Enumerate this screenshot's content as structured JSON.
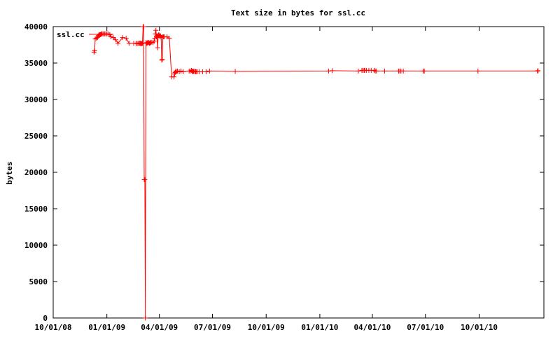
{
  "chart_data": {
    "type": "line",
    "title": "Text size in bytes for ssl.cc",
    "xlabel": "",
    "ylabel": "bytes",
    "x_tick_labels": [
      "10/01/08",
      "01/01/09",
      "04/01/09",
      "07/01/09",
      "10/01/09",
      "01/01/10",
      "04/01/10",
      "07/01/10",
      "10/01/10"
    ],
    "x_tick_dates": [
      "2008-10-01",
      "2009-01-01",
      "2009-04-01",
      "2009-07-01",
      "2009-10-01",
      "2010-01-01",
      "2010-04-01",
      "2010-07-01",
      "2010-10-01"
    ],
    "xlim": [
      "2008-10-01",
      "2011-01-20"
    ],
    "ylim": [
      0,
      40000
    ],
    "y_ticks": [
      0,
      5000,
      10000,
      15000,
      20000,
      25000,
      30000,
      35000,
      40000
    ],
    "y_tick_labels": [
      "0",
      "5000",
      "10000",
      "15000",
      "20000",
      "25000",
      "30000",
      "35000",
      "40000"
    ],
    "grid": false,
    "legend": "top-left",
    "color": "#ff0000",
    "series": [
      {
        "name": "ssl.cc",
        "x": [
          "2008-12-10",
          "2008-12-11",
          "2008-12-12",
          "2008-12-14",
          "2008-12-16",
          "2008-12-17",
          "2008-12-18",
          "2008-12-19",
          "2008-12-20",
          "2008-12-21",
          "2008-12-22",
          "2008-12-23",
          "2008-12-24",
          "2008-12-26",
          "2008-12-28",
          "2008-12-30",
          "2009-01-01",
          "2009-01-03",
          "2009-01-06",
          "2009-01-08",
          "2009-01-12",
          "2009-01-16",
          "2009-01-20",
          "2009-01-28",
          "2009-02-03",
          "2009-02-08",
          "2009-02-16",
          "2009-02-20",
          "2009-02-22",
          "2009-02-24",
          "2009-02-26",
          "2009-02-27",
          "2009-02-28",
          "2009-03-01",
          "2009-03-02",
          "2009-03-03",
          "2009-03-04",
          "2009-03-05",
          "2009-03-06",
          "2009-03-07",
          "2009-03-08",
          "2009-03-09",
          "2009-03-10",
          "2009-03-11",
          "2009-03-12",
          "2009-03-13",
          "2009-03-14",
          "2009-03-15",
          "2009-03-16",
          "2009-03-17",
          "2009-03-18",
          "2009-03-21",
          "2009-03-23",
          "2009-03-24",
          "2009-03-25",
          "2009-03-26",
          "2009-03-27",
          "2009-03-28",
          "2009-03-29",
          "2009-03-30",
          "2009-03-31",
          "2009-04-01",
          "2009-04-02",
          "2009-04-03",
          "2009-04-04",
          "2009-04-05",
          "2009-04-06",
          "2009-04-07",
          "2009-04-08",
          "2009-04-10",
          "2009-04-14",
          "2009-04-18",
          "2009-04-22",
          "2009-04-26",
          "2009-04-27",
          "2009-04-28",
          "2009-04-29",
          "2009-04-30",
          "2009-05-02",
          "2009-05-05",
          "2009-05-08",
          "2009-05-12",
          "2009-05-22",
          "2009-05-24",
          "2009-05-26",
          "2009-05-27",
          "2009-05-28",
          "2009-05-29",
          "2009-05-30",
          "2009-06-01",
          "2009-06-02",
          "2009-06-03",
          "2009-06-05",
          "2009-06-08",
          "2009-06-14",
          "2009-06-20",
          "2009-06-26",
          "2009-08-09",
          "2010-01-16",
          "2010-01-22",
          "2010-03-08",
          "2010-03-14",
          "2010-03-16",
          "2010-03-18",
          "2010-03-19",
          "2010-03-22",
          "2010-03-26",
          "2010-03-30",
          "2010-04-04",
          "2010-04-06",
          "2010-04-08",
          "2010-04-22",
          "2010-05-16",
          "2010-05-18",
          "2010-05-20",
          "2010-05-24",
          "2010-06-27",
          "2010-06-29",
          "2010-09-29",
          "2011-01-09",
          "2011-01-10"
        ],
        "y": [
          36500,
          36700,
          38300,
          38400,
          38500,
          38700,
          38800,
          38900,
          38900,
          38900,
          38950,
          39000,
          39000,
          39000,
          39000,
          39000,
          39000,
          39000,
          38900,
          38600,
          38500,
          38200,
          37700,
          38500,
          38400,
          37700,
          37700,
          37700,
          37650,
          37700,
          37700,
          37750,
          37650,
          37650,
          37700,
          37700,
          40000,
          40000,
          19000,
          19000,
          0,
          37800,
          37700,
          37750,
          37800,
          37800,
          37800,
          37700,
          37750,
          37800,
          37850,
          37800,
          38000,
          38400,
          39000,
          39500,
          38600,
          38500,
          37100,
          38800,
          38900,
          38700,
          38800,
          38700,
          38500,
          35400,
          35500,
          38600,
          38600,
          38600,
          38600,
          38400,
          33100,
          33100,
          33500,
          33700,
          33900,
          33800,
          33900,
          33800,
          33900,
          33800,
          33900,
          33900,
          34000,
          33800,
          33900,
          33900,
          33800,
          33900,
          33800,
          33800,
          33800,
          33800,
          33800,
          33800,
          33900,
          33850,
          33900,
          33950,
          33900,
          34000,
          34000,
          34000,
          34000,
          34000,
          34000,
          34000,
          34000,
          33900,
          33900,
          33900,
          33900,
          33900,
          33900,
          33900,
          33900,
          33900,
          33900,
          33900,
          33950
        ]
      }
    ]
  }
}
